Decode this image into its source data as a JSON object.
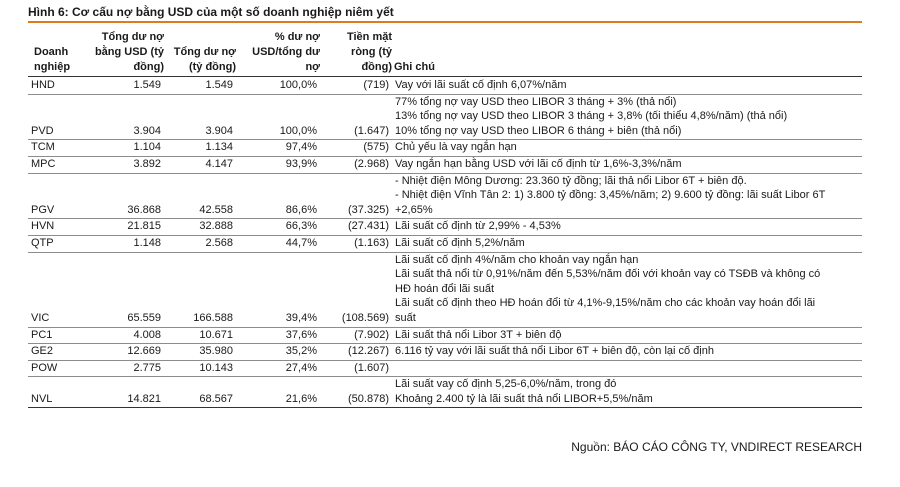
{
  "title": "Hình 6: Cơ cấu nợ bằng USD của một số doanh nghiệp niêm yết",
  "header": {
    "company": "Doanh\nnghiệp",
    "usd_debt": "Tổng dư nợ\nbằng USD (tỷ\nđồng)",
    "total_debt": "Tổng dư nợ\n(tỷ đồng)",
    "usd_ratio": "% dư nợ\nUSD/tổng dư\nnợ",
    "net_cash": "Tiền mặt\nròng (tỷ\nđồng)",
    "notes": "Ghi chú"
  },
  "rows": [
    {
      "company": "HND",
      "usd_debt": "1.549",
      "total_debt": "1.549",
      "usd_ratio": "100,0%",
      "net_cash": "(719)",
      "notes": [
        "Vay với lãi suất cố định 6,07%/năm"
      ]
    },
    {
      "company": "PVD",
      "usd_debt": "3.904",
      "total_debt": "3.904",
      "usd_ratio": "100,0%",
      "net_cash": "(1.647)",
      "notes": [
        "77% tổng nợ vay USD theo LIBOR 3 tháng + 3% (thả nổi)",
        "13% tổng nợ vay USD theo LIBOR 3 tháng + 3,8% (tối thiểu 4,8%/năm) (thả nổi)",
        "10% tổng nợ vay USD theo LIBOR 6 tháng + biên (thả nổi)"
      ]
    },
    {
      "company": "TCM",
      "usd_debt": "1.104",
      "total_debt": "1.134",
      "usd_ratio": "97,4%",
      "net_cash": "(575)",
      "notes": [
        "Chủ yếu là vay ngắn hạn"
      ]
    },
    {
      "company": "MPC",
      "usd_debt": "3.892",
      "total_debt": "4.147",
      "usd_ratio": "93,9%",
      "net_cash": "(2.968)",
      "notes": [
        "Vay ngắn hạn bằng USD với lãi cố định từ 1,6%-3,3%/năm"
      ]
    },
    {
      "company": "PGV",
      "usd_debt": "36.868",
      "total_debt": "42.558",
      "usd_ratio": "86,6%",
      "net_cash": "(37.325)",
      "notes": [
        "- Nhiệt điện Mông Dương: 23.360 tỷ đồng; lãi thả nổi Libor 6T + biên độ.",
        "- Nhiệt điện Vĩnh Tân 2: 1) 3.800 tỷ đồng: 3,45%/năm; 2) 9.600 tỷ đồng: lãi suất Libor 6T",
        "+2,65%"
      ]
    },
    {
      "company": "HVN",
      "usd_debt": "21.815",
      "total_debt": "32.888",
      "usd_ratio": "66,3%",
      "net_cash": "(27.431)",
      "notes": [
        "Lãi suất cố định từ 2,99% - 4,53%"
      ]
    },
    {
      "company": "QTP",
      "usd_debt": "1.148",
      "total_debt": "2.568",
      "usd_ratio": "44,7%",
      "net_cash": "(1.163)",
      "notes": [
        "Lãi suất cố định 5,2%/năm"
      ]
    },
    {
      "company": "VIC",
      "usd_debt": "65.559",
      "total_debt": "166.588",
      "usd_ratio": "39,4%",
      "net_cash": "(108.569)",
      "notes": [
        "Lãi suất cố định 4%/năm cho khoản vay ngắn hạn",
        "Lãi suất thả nổi từ 0,91%/năm đến 5,53%/năm đối với khoản vay có TSĐB và không có",
        "HĐ hoán đổi lãi suất",
        "Lãi suất cố định theo HĐ hoán đổi từ 4,1%-9,15%/năm cho các khoản vay hoán đổi lãi",
        "suất"
      ]
    },
    {
      "company": "PC1",
      "usd_debt": "4.008",
      "total_debt": "10.671",
      "usd_ratio": "37,6%",
      "net_cash": "(7.902)",
      "notes": [
        "Lãi suất thả nổi Libor 3T + biên độ"
      ]
    },
    {
      "company": "GE2",
      "usd_debt": "12.669",
      "total_debt": "35.980",
      "usd_ratio": "35,2%",
      "net_cash": "(12.267)",
      "notes": [
        "6.116 tỷ vay với lãi suất thả nổi Libor 6T + biên độ, còn lại cố định"
      ]
    },
    {
      "company": "POW",
      "usd_debt": "2.775",
      "total_debt": "10.143",
      "usd_ratio": "27,4%",
      "net_cash": "(1.607)",
      "notes": []
    },
    {
      "company": "NVL",
      "usd_debt": "14.821",
      "total_debt": "68.567",
      "usd_ratio": "21,6%",
      "net_cash": "(50.878)",
      "notes": [
        "Lãi suất vay cố định 5,25-6,0%/năm, trong đó",
        "Khoảng 2.400 tỷ là lãi suất thả nổi LIBOR+5,5%/năm"
      ]
    }
  ],
  "source": "Nguồn: BÁO CÁO CÔNG TY, VNDIRECT RESEARCH"
}
